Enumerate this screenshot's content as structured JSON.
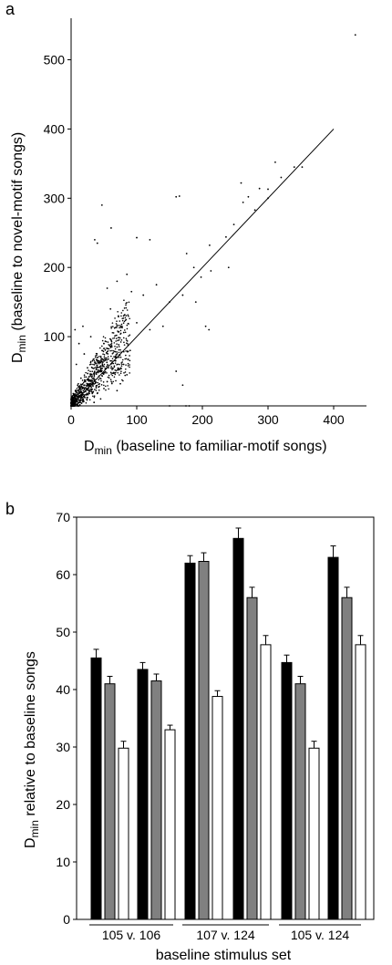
{
  "chart_data": [
    {
      "type": "scatter",
      "panel_label": "a",
      "title": "",
      "xlabel_main": "D",
      "xlabel_sub": "min",
      "xlabel_rest": " (baseline to familiar-motif songs)",
      "ylabel_main": "D",
      "ylabel_sub": "min",
      "ylabel_rest": " (baseline to novel-motif songs)",
      "xlim": [
        0,
        450
      ],
      "ylim": [
        0,
        560
      ],
      "xticks": [
        0,
        100,
        200,
        300,
        400
      ],
      "yticks": [
        100,
        200,
        300,
        400,
        500
      ],
      "ytick_labels": [
        "100",
        "200",
        "300",
        "400",
        "500"
      ],
      "xtick_labels": [
        "0",
        "100",
        "200",
        "300",
        "400"
      ],
      "line": {
        "x": [
          0,
          400
        ],
        "y": [
          0,
          400
        ]
      },
      "grid": false,
      "points": [
        [
          433,
          536
        ],
        [
          340,
          345
        ],
        [
          311,
          352
        ],
        [
          287,
          314
        ],
        [
          300,
          313
        ],
        [
          270,
          302
        ],
        [
          259,
          322
        ],
        [
          262,
          294
        ],
        [
          165,
          303
        ],
        [
          160,
          302
        ],
        [
          47,
          290
        ],
        [
          36,
          240
        ],
        [
          40,
          235
        ],
        [
          61,
          257
        ],
        [
          100,
          243
        ],
        [
          120,
          240
        ],
        [
          236,
          244
        ],
        [
          176,
          220
        ],
        [
          211,
          232
        ],
        [
          280,
          283
        ],
        [
          248,
          262
        ],
        [
          187,
          200
        ],
        [
          213,
          195
        ],
        [
          198,
          186
        ],
        [
          85,
          190
        ],
        [
          70,
          180
        ],
        [
          55,
          170
        ],
        [
          92,
          165
        ],
        [
          110,
          160
        ],
        [
          130,
          175
        ],
        [
          150,
          150
        ],
        [
          170,
          160
        ],
        [
          190,
          150
        ],
        [
          60,
          140
        ],
        [
          80,
          130
        ],
        [
          100,
          120
        ],
        [
          120,
          110
        ],
        [
          140,
          115
        ],
        [
          30,
          100
        ],
        [
          50,
          90
        ],
        [
          70,
          85
        ],
        [
          90,
          80
        ],
        [
          20,
          75
        ],
        [
          40,
          70
        ],
        [
          60,
          65
        ],
        [
          80,
          60
        ],
        [
          25,
          55
        ],
        [
          45,
          50
        ],
        [
          65,
          48
        ],
        [
          85,
          45
        ],
        [
          15,
          40
        ],
        [
          35,
          38
        ],
        [
          55,
          35
        ],
        [
          75,
          32
        ],
        [
          10,
          30
        ],
        [
          30,
          28
        ],
        [
          50,
          25
        ],
        [
          70,
          22
        ],
        [
          20,
          20
        ],
        [
          40,
          18
        ],
        [
          5,
          15
        ],
        [
          25,
          12
        ],
        [
          45,
          10
        ],
        [
          15,
          8
        ],
        [
          35,
          5
        ],
        [
          8,
          60
        ],
        [
          12,
          90
        ],
        [
          6,
          110
        ],
        [
          18,
          115
        ],
        [
          160,
          50
        ],
        [
          170,
          30
        ],
        [
          175,
          0
        ],
        [
          180,
          0
        ],
        [
          150,
          0
        ],
        [
          210,
          110
        ],
        [
          205,
          115
        ],
        [
          240,
          200
        ],
        [
          300,
          300
        ],
        [
          320,
          330
        ],
        [
          352,
          345
        ]
      ]
    },
    {
      "type": "bar",
      "panel_label": "b",
      "title": "",
      "xlabel": "baseline stimulus set",
      "ylabel_main": "D",
      "ylabel_sub": "min",
      "ylabel_rest": " relative to baseline songs",
      "ylim": [
        0,
        70
      ],
      "yticks": [
        0,
        10,
        20,
        30,
        40,
        50,
        60,
        70
      ],
      "ytick_labels": [
        "0",
        "10",
        "20",
        "30",
        "40",
        "50",
        "60",
        "70"
      ],
      "series_colors": [
        "#000000",
        "#808080",
        "#ffffff"
      ],
      "groups": [
        {
          "values": [
            45.5,
            41.0,
            29.8
          ],
          "errors": [
            1.5,
            1.3,
            1.2
          ]
        },
        {
          "values": [
            43.5,
            41.5,
            33.0
          ],
          "errors": [
            1.2,
            1.2,
            0.8
          ]
        },
        {
          "values": [
            62.0,
            62.3,
            38.8
          ],
          "errors": [
            1.3,
            1.5,
            1.0
          ]
        },
        {
          "values": [
            66.3,
            56.0,
            47.8
          ],
          "errors": [
            1.8,
            1.8,
            1.6
          ]
        },
        {
          "values": [
            44.7,
            41.0,
            29.8
          ],
          "errors": [
            1.3,
            1.3,
            1.2
          ]
        },
        {
          "values": [
            63.0,
            56.0,
            47.8
          ],
          "errors": [
            2.0,
            1.8,
            1.6
          ]
        }
      ],
      "category_labels": [
        "105 v. 106",
        "107 v. 124",
        "105 v. 124"
      ]
    }
  ]
}
